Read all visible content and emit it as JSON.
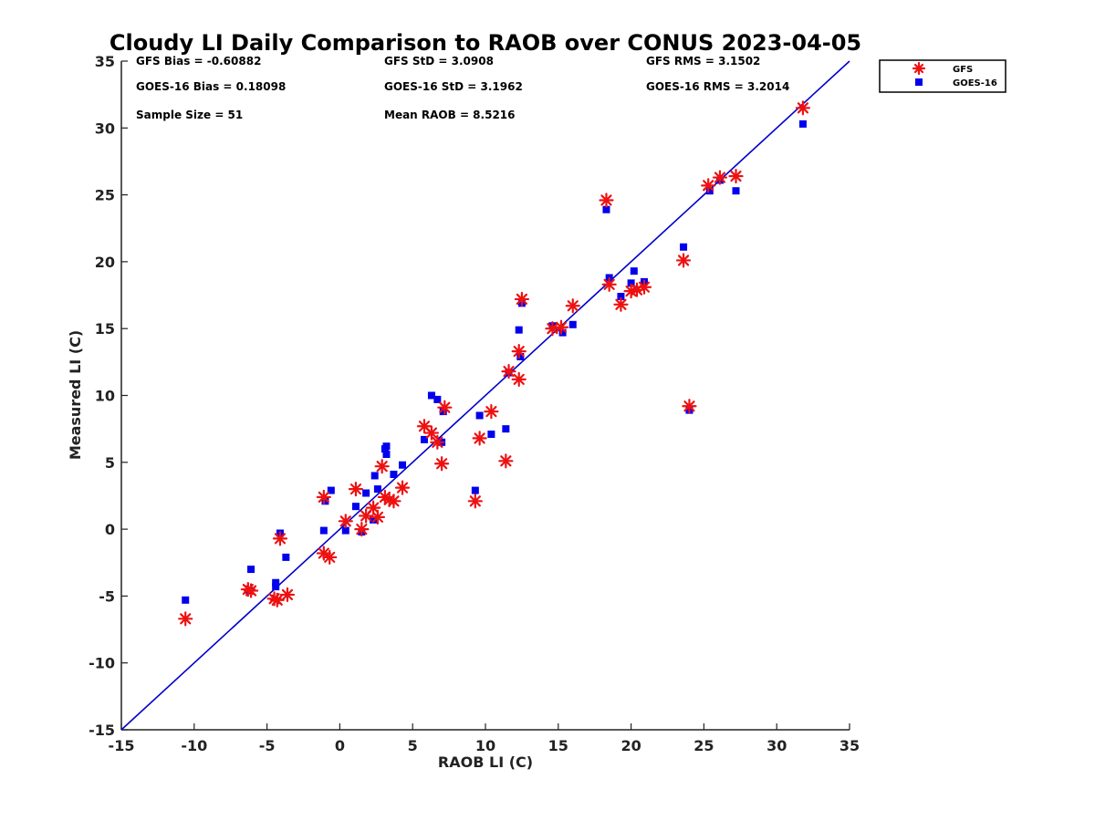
{
  "chart_data": {
    "type": "scatter",
    "title": "Cloudy LI Daily Comparison to RAOB over CONUS 2023-04-05",
    "xlabel": "RAOB LI (C)",
    "ylabel": "Measured LI (C)",
    "xlim": [
      -15,
      35
    ],
    "ylim": [
      -15,
      35
    ],
    "xticks": [
      "-15",
      "-10",
      "-5",
      "0",
      "5",
      "10",
      "15",
      "20",
      "25",
      "30",
      "35"
    ],
    "yticks": [
      "-15",
      "-10",
      "-5",
      "0",
      "5",
      "10",
      "15",
      "20",
      "25",
      "30",
      "35"
    ],
    "grid": false,
    "legend_position": "outside-top-right",
    "reference_line": {
      "x": [
        -15,
        35
      ],
      "y": [
        -15,
        35
      ],
      "color": "#0000cc"
    },
    "stats": [
      "GFS Bias = -0.60882",
      "GFS StD = 3.0908",
      "GFS RMS = 3.1502",
      "GOES-16 Bias = 0.18098",
      "GOES-16 StD = 3.1962",
      "GOES-16 RMS = 3.2014",
      "Sample Size = 51",
      "Mean RAOB = 8.5216"
    ],
    "series": [
      {
        "name": "GFS",
        "marker": "asterisk",
        "color": "#ee1111",
        "points": [
          [
            -10.6,
            -6.7
          ],
          [
            -6.3,
            -4.5
          ],
          [
            -6.1,
            -4.6
          ],
          [
            -4.5,
            -5.2
          ],
          [
            -4.3,
            -5.3
          ],
          [
            -4.1,
            -0.7
          ],
          [
            -3.6,
            -4.9
          ],
          [
            -1.1,
            2.4
          ],
          [
            -1.1,
            -1.8
          ],
          [
            -0.7,
            -2.1
          ],
          [
            0.4,
            0.6
          ],
          [
            1.1,
            3.0
          ],
          [
            1.5,
            0.0
          ],
          [
            1.8,
            1.0
          ],
          [
            2.3,
            1.6
          ],
          [
            2.6,
            0.9
          ],
          [
            2.9,
            4.7
          ],
          [
            3.1,
            2.4
          ],
          [
            3.4,
            2.2
          ],
          [
            3.7,
            2.1
          ],
          [
            4.3,
            3.1
          ],
          [
            5.8,
            7.7
          ],
          [
            6.3,
            7.2
          ],
          [
            6.7,
            6.5
          ],
          [
            7.0,
            4.9
          ],
          [
            7.2,
            9.1
          ],
          [
            9.3,
            2.1
          ],
          [
            9.6,
            6.8
          ],
          [
            10.4,
            8.8
          ],
          [
            11.4,
            5.1
          ],
          [
            11.6,
            11.8
          ],
          [
            12.3,
            13.3
          ],
          [
            12.3,
            11.2
          ],
          [
            12.5,
            17.2
          ],
          [
            14.6,
            15.0
          ],
          [
            15.2,
            15.1
          ],
          [
            16.0,
            16.7
          ],
          [
            18.3,
            24.6
          ],
          [
            18.5,
            18.3
          ],
          [
            19.3,
            16.8
          ],
          [
            20.0,
            17.8
          ],
          [
            20.4,
            17.9
          ],
          [
            20.9,
            18.1
          ],
          [
            23.6,
            20.1
          ],
          [
            24.0,
            9.2
          ],
          [
            25.3,
            25.7
          ],
          [
            26.1,
            26.3
          ],
          [
            27.2,
            26.4
          ],
          [
            31.8,
            31.5
          ]
        ]
      },
      {
        "name": "GOES-16",
        "marker": "square",
        "color": "#0000ee",
        "points": [
          [
            -10.6,
            -5.3
          ],
          [
            -6.2,
            -4.6
          ],
          [
            -6.1,
            -3.0
          ],
          [
            -4.4,
            -4.0
          ],
          [
            -4.4,
            -4.3
          ],
          [
            -4.1,
            -0.3
          ],
          [
            -3.7,
            -2.1
          ],
          [
            -1.1,
            -0.1
          ],
          [
            -1.0,
            2.1
          ],
          [
            -0.6,
            2.9
          ],
          [
            0.4,
            -0.1
          ],
          [
            1.1,
            1.7
          ],
          [
            1.5,
            -0.2
          ],
          [
            1.8,
            2.7
          ],
          [
            2.3,
            0.7
          ],
          [
            2.4,
            4.0
          ],
          [
            2.6,
            3.0
          ],
          [
            3.1,
            6.0
          ],
          [
            3.2,
            6.2
          ],
          [
            3.2,
            5.6
          ],
          [
            3.7,
            4.1
          ],
          [
            4.3,
            4.8
          ],
          [
            5.8,
            6.7
          ],
          [
            6.3,
            10.0
          ],
          [
            6.7,
            9.7
          ],
          [
            7.0,
            6.5
          ],
          [
            7.1,
            8.8
          ],
          [
            9.3,
            2.9
          ],
          [
            9.6,
            8.5
          ],
          [
            10.4,
            7.1
          ],
          [
            11.4,
            7.5
          ],
          [
            11.6,
            11.7
          ],
          [
            12.3,
            14.9
          ],
          [
            12.4,
            12.9
          ],
          [
            12.5,
            16.9
          ],
          [
            14.6,
            15.2
          ],
          [
            15.3,
            14.7
          ],
          [
            16.0,
            15.3
          ],
          [
            18.3,
            23.9
          ],
          [
            18.5,
            18.8
          ],
          [
            19.3,
            17.4
          ],
          [
            20.0,
            18.4
          ],
          [
            20.2,
            19.3
          ],
          [
            20.9,
            18.5
          ],
          [
            23.6,
            21.1
          ],
          [
            24.0,
            8.9
          ],
          [
            25.4,
            25.3
          ],
          [
            26.1,
            26.1
          ],
          [
            27.2,
            25.3
          ],
          [
            31.8,
            30.3
          ]
        ]
      }
    ]
  }
}
